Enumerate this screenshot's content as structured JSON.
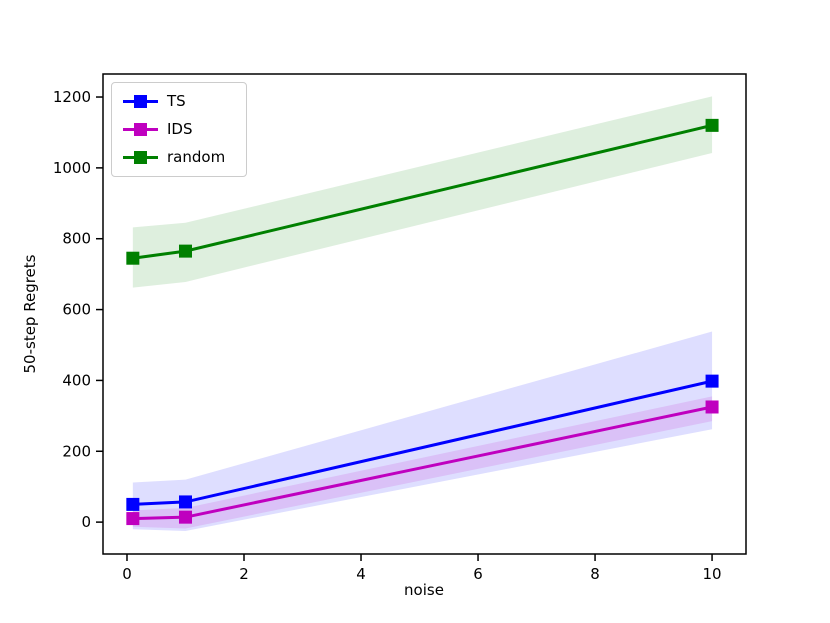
{
  "figure": {
    "background": "#ffffff",
    "text_color": "#000000",
    "spine_color": "#000000"
  },
  "chart_data": {
    "type": "line",
    "title": "",
    "xlabel": "noise",
    "ylabel": "50-step Regrets",
    "x": [
      0.1,
      1,
      10
    ],
    "series": [
      {
        "name": "TS",
        "color": "#0000ff",
        "values": [
          50,
          57,
          398
        ],
        "band_lower": [
          -20,
          -25,
          262
        ],
        "band_upper": [
          112,
          120,
          538
        ]
      },
      {
        "name": "IDS",
        "color": "#bf00bf",
        "values": [
          10,
          14,
          325
        ],
        "band_lower": [
          -13,
          -18,
          285
        ],
        "band_upper": [
          33,
          40,
          355
        ]
      },
      {
        "name": "random",
        "color": "#008000",
        "values": [
          745,
          765,
          1120
        ],
        "band_lower": [
          662,
          678,
          1042
        ],
        "band_upper": [
          832,
          845,
          1202
        ]
      }
    ],
    "xlim": [
      -0.41,
      10.58
    ],
    "ylim": [
      -90,
      1265
    ],
    "x_ticks": [
      0,
      2,
      4,
      6,
      8,
      10
    ],
    "y_ticks": [
      0,
      200,
      400,
      600,
      800,
      1000,
      1200
    ],
    "grid": false,
    "legend_position": "upper-left",
    "legend_labels": [
      "TS",
      "IDS",
      "random"
    ],
    "marker": "square",
    "band_alpha": 0.13,
    "line_width": 3,
    "marker_size": 13
  }
}
